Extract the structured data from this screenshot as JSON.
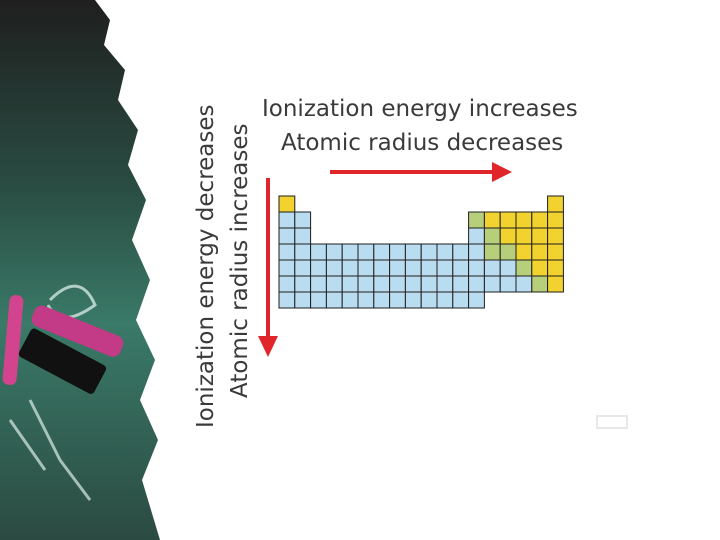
{
  "labels": {
    "horizontal_1": "Ionization energy increases",
    "horizontal_2": "Atomic radius decreases",
    "vertical_1": "Ionization energy decreases",
    "vertical_2": "Atomic radius increases"
  },
  "colors": {
    "blue": "#b9dcf0",
    "yellow": "#f2d22e",
    "green": "#b7cf7a",
    "green_light": "#cfe3a0",
    "arrow": "#e0262b",
    "grid_line": "#1e1e1e",
    "chalkboard": "#2f6656"
  },
  "periodic_table": {
    "rows": [
      "Y................Y",
      "BB..........GYYYYY",
      "BB..........BGYYYY",
      "BBBBBBBBBBBBBGGYYY",
      "BBBBBBBBBBBBBBBGYY",
      "BBBBBBBBBBBBBBBBGY",
      "BBBBBBBBBBBBB....."
    ]
  }
}
